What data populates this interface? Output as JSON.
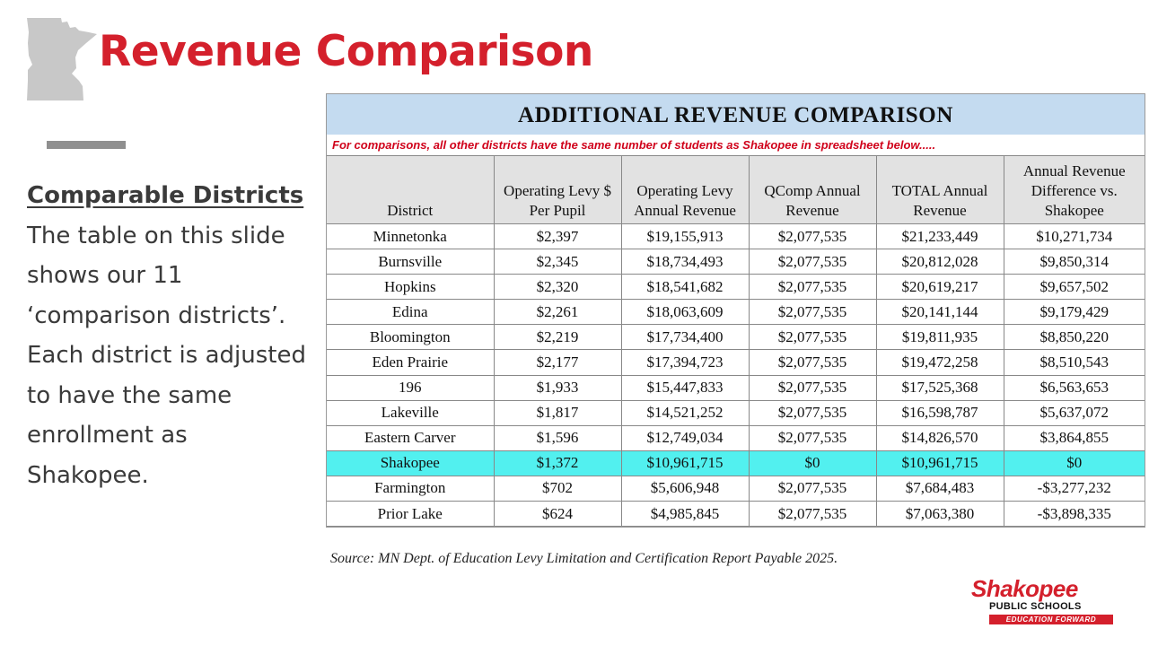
{
  "slide": {
    "title": "Revenue Comparison",
    "sidebar_heading": "Comparable Districts",
    "sidebar_body": "The table on this slide shows our 11 ‘comparison districts’. Each district is adjusted to have the same enrollment as Shakopee.",
    "source": "Source: MN Dept. of Education Levy Limitation and Certification Report Payable 2025."
  },
  "table": {
    "title": "ADDITIONAL REVENUE COMPARISON",
    "note": "For comparisons, all other districts have the same number of students as Shakopee in spreadsheet below.....",
    "headers": [
      "District",
      "Operating Levy $ Per Pupil",
      "Operating Levy Annual Revenue",
      "QComp Annual Revenue",
      "TOTAL Annual Revenue",
      "Annual Revenue Difference vs. Shakopee"
    ],
    "rows": [
      {
        "district": "Minnetonka",
        "per_pupil": "$2,397",
        "levy_revenue": "$19,155,913",
        "qcomp": "$2,077,535",
        "total": "$21,233,449",
        "difference": "$10,271,734"
      },
      {
        "district": "Burnsville",
        "per_pupil": "$2,345",
        "levy_revenue": "$18,734,493",
        "qcomp": "$2,077,535",
        "total": "$20,812,028",
        "difference": "$9,850,314"
      },
      {
        "district": "Hopkins",
        "per_pupil": "$2,320",
        "levy_revenue": "$18,541,682",
        "qcomp": "$2,077,535",
        "total": "$20,619,217",
        "difference": "$9,657,502"
      },
      {
        "district": "Edina",
        "per_pupil": "$2,261",
        "levy_revenue": "$18,063,609",
        "qcomp": "$2,077,535",
        "total": "$20,141,144",
        "difference": "$9,179,429"
      },
      {
        "district": "Bloomington",
        "per_pupil": "$2,219",
        "levy_revenue": "$17,734,400",
        "qcomp": "$2,077,535",
        "total": "$19,811,935",
        "difference": "$8,850,220"
      },
      {
        "district": "Eden Prairie",
        "per_pupil": "$2,177",
        "levy_revenue": "$17,394,723",
        "qcomp": "$2,077,535",
        "total": "$19,472,258",
        "difference": "$8,510,543"
      },
      {
        "district": "196",
        "per_pupil": "$1,933",
        "levy_revenue": "$15,447,833",
        "qcomp": "$2,077,535",
        "total": "$17,525,368",
        "difference": "$6,563,653"
      },
      {
        "district": "Lakeville",
        "per_pupil": "$1,817",
        "levy_revenue": "$14,521,252",
        "qcomp": "$2,077,535",
        "total": "$16,598,787",
        "difference": "$5,637,072"
      },
      {
        "district": "Eastern Carver",
        "per_pupil": "$1,596",
        "levy_revenue": "$12,749,034",
        "qcomp": "$2,077,535",
        "total": "$14,826,570",
        "difference": "$3,864,855"
      },
      {
        "district": "Shakopee",
        "per_pupil": "$1,372",
        "levy_revenue": "$10,961,715",
        "qcomp": "$0",
        "total": "$10,961,715",
        "difference": "$0",
        "highlight": true
      },
      {
        "district": "Farmington",
        "per_pupil": "$702",
        "levy_revenue": "$5,606,948",
        "qcomp": "$2,077,535",
        "total": "$7,684,483",
        "difference": "-$3,277,232"
      },
      {
        "district": "Prior Lake",
        "per_pupil": "$624",
        "levy_revenue": "$4,985,845",
        "qcomp": "$2,077,535",
        "total": "$7,063,380",
        "difference": "-$3,898,335"
      }
    ],
    "highlight_color": "#52f0ef"
  },
  "logo": {
    "name": "Shakopee",
    "subtitle": "PUBLIC SCHOOLS",
    "tagline": "EDUCATION FORWARD"
  },
  "colors": {
    "title_red": "#d4202c",
    "table_title_bg": "#c4dbf0",
    "header_bg": "#e2e2e2",
    "accent_bar": "#8f8f8f"
  }
}
